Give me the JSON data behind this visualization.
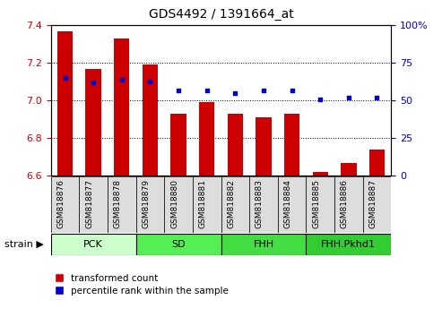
{
  "title": "GDS4492 / 1391664_at",
  "samples": [
    "GSM818876",
    "GSM818877",
    "GSM818878",
    "GSM818879",
    "GSM818880",
    "GSM818881",
    "GSM818882",
    "GSM818883",
    "GSM818884",
    "GSM818885",
    "GSM818886",
    "GSM818887"
  ],
  "red_values": [
    7.37,
    7.17,
    7.33,
    7.19,
    6.93,
    6.99,
    6.93,
    6.91,
    6.93,
    6.62,
    6.67,
    6.74
  ],
  "blue_percentiles": [
    65,
    62,
    64,
    63,
    57,
    57,
    55,
    57,
    57,
    51,
    52,
    52
  ],
  "ylim_left": [
    6.6,
    7.4
  ],
  "ylim_right": [
    0,
    100
  ],
  "yticks_left": [
    6.6,
    6.8,
    7.0,
    7.2,
    7.4
  ],
  "yticks_right": [
    0,
    25,
    50,
    75,
    100
  ],
  "bar_color": "#cc0000",
  "dot_color": "#0000cc",
  "bar_bottom": 6.6,
  "groups": [
    {
      "label": "PCK",
      "start": 0,
      "end": 3,
      "color": "#ccffcc"
    },
    {
      "label": "SD",
      "start": 3,
      "end": 6,
      "color": "#55ee55"
    },
    {
      "label": "FHH",
      "start": 6,
      "end": 9,
      "color": "#44dd44"
    },
    {
      "label": "FHH.Pkhd1",
      "start": 9,
      "end": 12,
      "color": "#33cc33"
    }
  ],
  "legend_red_label": "transformed count",
  "legend_blue_label": "percentile rank within the sample",
  "strain_label": "strain",
  "tick_color_left": "#cc0000",
  "tick_color_right": "#0000cc",
  "tick_bg_color": "#dddddd"
}
